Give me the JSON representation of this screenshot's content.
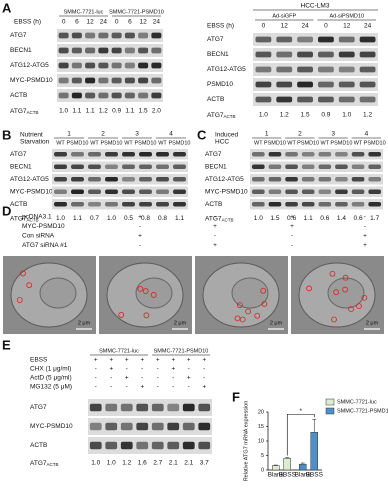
{
  "panels": {
    "A": {
      "letter": "A",
      "left": {
        "time_label": "EBSS (h)",
        "groups": [
          "SMMC-7721-luc",
          "SMMC-7721-PSMD10"
        ],
        "times": [
          "0",
          "6",
          "12",
          "24",
          "0",
          "6",
          "12",
          "24"
        ],
        "rows": [
          "ATG7",
          "BECN1",
          "ATG12-ATG5",
          "MYC-PSMD10",
          "ACTB"
        ],
        "ratio_label": {
          "main": "ATG7",
          "sub": "ACTB"
        },
        "ratios": [
          "1.0",
          "1.1",
          "1.1",
          "1.2",
          "0.9",
          "1.1",
          "1.5",
          "2.0"
        ]
      },
      "right": {
        "title": "HCC-LM3",
        "time_label": "EBSS (h)",
        "groups": [
          "Ad-siGFP",
          "Ad-siPSMD10"
        ],
        "times": [
          "0",
          "12",
          "24",
          "0",
          "12",
          "24"
        ],
        "rows": [
          "ATG7",
          "BECN1",
          "ATG12-ATG5",
          "PSMD10",
          "ACTB"
        ],
        "ratio_label": {
          "main": "ATG7",
          "sub": "ACTB"
        },
        "ratios": [
          "1.0",
          "1.2",
          "1.5",
          "0.9",
          "1.0",
          "1.2"
        ]
      }
    },
    "B": {
      "letter": "B",
      "condition": [
        "Nutrient",
        "Starvation"
      ],
      "pairs": [
        "1",
        "2",
        "3",
        "4"
      ],
      "genotypes": [
        "WT",
        "PSMD10"
      ],
      "rows": [
        "ATG7",
        "BECN1",
        "ATG12-ATG5",
        "MYC-PSMD10",
        "ACTB"
      ],
      "ratio_label": {
        "main": "ATG7",
        "sub": "ACTB"
      },
      "ratios": [
        "1.0",
        "1.1",
        "0.7",
        "1.0",
        "0.5",
        "0.8",
        "0.8",
        "1.1"
      ]
    },
    "C": {
      "letter": "C",
      "condition": [
        "Induced",
        "HCC"
      ],
      "pairs": [
        "1",
        "2",
        "3",
        "4"
      ],
      "genotypes": [
        "WT",
        "PSMD10"
      ],
      "rows": [
        "ATG7",
        "BECN1",
        "ATG12-ATG5",
        "MYC-PSMD10",
        "ACTB"
      ],
      "ratio_label": {
        "main": "ATG7",
        "sub": "ACTB"
      },
      "ratios": [
        "1.0",
        "1.5",
        "0.6",
        "1.1",
        "0.6",
        "1.4",
        "0.6",
        "1.7"
      ]
    },
    "D": {
      "letter": "D",
      "treatments": [
        "pcDNA3.1",
        "MYC-PSMD10",
        "Con siRNA",
        "ATG7 siRNA #1"
      ],
      "signs": [
        [
          "+",
          "-",
          "+",
          "-"
        ],
        [
          "-",
          "+",
          "-",
          "+"
        ],
        [
          "+",
          "+",
          "-",
          "-"
        ],
        [
          "-",
          "-",
          "+",
          "+"
        ]
      ],
      "scale_bar": "2 μm"
    },
    "E": {
      "letter": "E",
      "groups": [
        "SMMC-7721-luc",
        "SMMC-7721-PSMD10"
      ],
      "treatments": [
        "EBSS",
        "CHX (1 μg/ml)",
        "ActD (5 μg/ml)",
        "MG132 (5 μM)"
      ],
      "signs": [
        [
          "+",
          "+",
          "+",
          "+",
          "+",
          "+",
          "+",
          "+"
        ],
        [
          "-",
          "+",
          "-",
          "-",
          "-",
          "+",
          "-",
          "-"
        ],
        [
          "-",
          "-",
          "+",
          "-",
          "-",
          "-",
          "+",
          "-"
        ],
        [
          "-",
          "-",
          "-",
          "+",
          "-",
          "-",
          "-",
          "+"
        ]
      ],
      "rows": [
        "ATG7",
        "MYC-PSMD10",
        "ACTB"
      ],
      "ratio_label": {
        "main": "ATG7",
        "sub": "ACTB"
      },
      "ratios": [
        "1.0",
        "1.0",
        "1.2",
        "1.6",
        "2.7",
        "2.1",
        "2.1",
        "3.7"
      ]
    },
    "F": {
      "letter": "F"
    }
  },
  "chart_data": {
    "type": "bar",
    "y_label": "Relative ATG7 mRNA expression",
    "categories": [
      "Blank",
      "EBSS"
    ],
    "series": [
      {
        "name": "SMMC-7721-luc",
        "color": "#dbedd0",
        "values": [
          1.5,
          4
        ],
        "errors": [
          0.2,
          0.3
        ]
      },
      {
        "name": "SMMC-7721-PSMD10",
        "color": "#4f8fc9",
        "values": [
          2,
          13
        ],
        "errors": [
          0.4,
          4.5
        ]
      }
    ],
    "ylim": [
      0,
      20
    ],
    "yticks": [
      0,
      5,
      10,
      15,
      20
    ],
    "annotation": "*"
  }
}
